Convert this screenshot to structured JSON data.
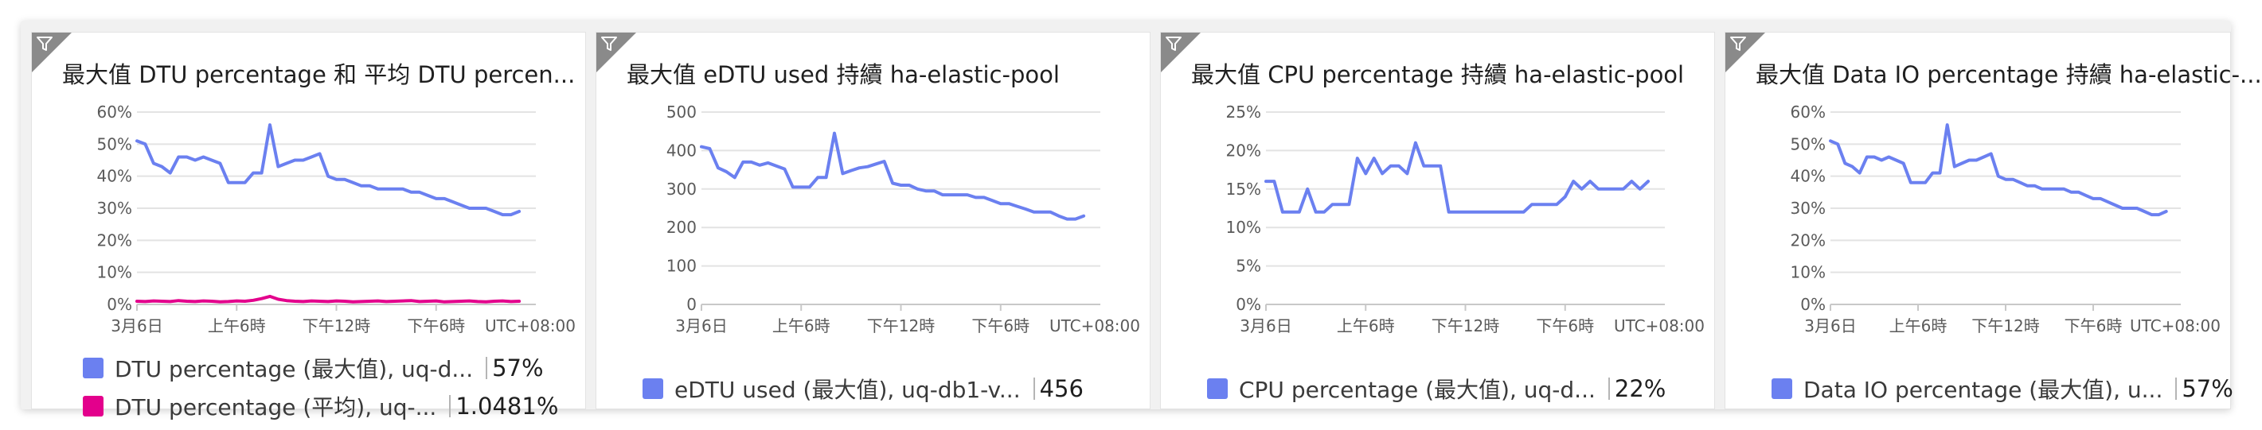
{
  "tiles": [
    {
      "title": "最大值 DTU percentage 和 平均 DTU percen...",
      "legend": [
        {
          "label": "DTU percentage (最大值), uq-d...",
          "value": "57%",
          "color": "#6b80f0"
        },
        {
          "label": "DTU percentage (平均), uq-...",
          "value": "1.0481%",
          "color": "#e3008c"
        }
      ]
    },
    {
      "title": "最大值 eDTU used 持續 ha-elastic-pool",
      "legend": [
        {
          "label": "eDTU used (最大值), uq-db1-v...",
          "value": "456",
          "color": "#6b80f0"
        }
      ]
    },
    {
      "title": "最大值 CPU percentage 持續 ha-elastic-pool",
      "legend": [
        {
          "label": "CPU percentage (最大值), uq-d...",
          "value": "22%",
          "color": "#6b80f0"
        }
      ]
    },
    {
      "title": "最大值 Data IO percentage 持續 ha-elastic-...",
      "legend": [
        {
          "label": "Data IO percentage (最大值), u...",
          "value": "57%",
          "color": "#6b80f0"
        }
      ]
    }
  ],
  "chart_data": [
    {
      "type": "line",
      "x_tick_labels": [
        "3月6日",
        "上午6時",
        "下午12時",
        "下午6時"
      ],
      "x_extra_label": "UTC+08:00",
      "x_range": [
        0,
        24
      ],
      "x_ticks_at": [
        0,
        6,
        12,
        18
      ],
      "y_tick_labels": [
        "60%",
        "50%",
        "40%",
        "30%",
        "20%",
        "10%",
        "0%"
      ],
      "ylim": [
        0,
        60
      ],
      "grid": true,
      "series": [
        {
          "name": "DTU percentage (最大值), uq-d...",
          "color": "#6b80f0",
          "x": [
            0,
            0.5,
            1,
            1.5,
            2,
            2.5,
            3,
            3.5,
            4,
            4.5,
            5,
            5.5,
            6,
            6.5,
            7,
            7.5,
            8,
            8.5,
            9,
            9.5,
            10,
            10.5,
            11,
            11.5,
            12,
            12.5,
            13,
            13.5,
            14,
            14.5,
            15,
            15.5,
            16,
            16.5,
            17,
            17.5,
            18,
            18.5,
            19,
            19.5,
            20,
            20.5,
            21,
            21.5,
            22,
            22.5,
            23
          ],
          "values": [
            51,
            50,
            44,
            43,
            41,
            46,
            46,
            45,
            46,
            45,
            44,
            38,
            38,
            38,
            41,
            41,
            56,
            43,
            44,
            45,
            45,
            46,
            47,
            40,
            39,
            39,
            38,
            37,
            37,
            36,
            36,
            36,
            36,
            35,
            35,
            34,
            33,
            33,
            32,
            31,
            30,
            30,
            30,
            29,
            28,
            28,
            29
          ]
        },
        {
          "name": "DTU percentage (平均), uq-...",
          "color": "#e3008c",
          "x": [
            0,
            0.5,
            1,
            1.5,
            2,
            2.5,
            3,
            3.5,
            4,
            4.5,
            5,
            5.5,
            6,
            6.5,
            7,
            7.5,
            8,
            8.5,
            9,
            9.5,
            10,
            10.5,
            11,
            11.5,
            12,
            12.5,
            13,
            13.5,
            14,
            14.5,
            15,
            15.5,
            16,
            16.5,
            17,
            17.5,
            18,
            18.5,
            19,
            19.5,
            20,
            20.5,
            21,
            21.5,
            22,
            22.5,
            23
          ],
          "values": [
            1.0,
            0.9,
            1.1,
            1.0,
            0.9,
            1.2,
            1.0,
            0.9,
            1.1,
            1.0,
            0.8,
            0.9,
            1.1,
            1.0,
            1.3,
            1.8,
            2.5,
            1.6,
            1.2,
            1.0,
            0.9,
            1.1,
            1.0,
            0.9,
            1.1,
            1.0,
            0.8,
            0.9,
            1.0,
            1.1,
            0.9,
            1.0,
            1.1,
            1.2,
            0.9,
            1.0,
            1.1,
            0.8,
            0.9,
            1.0,
            1.1,
            0.9,
            0.8,
            1.0,
            1.1,
            0.9,
            1.0
          ]
        }
      ]
    },
    {
      "type": "line",
      "x_tick_labels": [
        "3月6日",
        "上午6時",
        "下午12時",
        "下午6時"
      ],
      "x_extra_label": "UTC+08:00",
      "x_range": [
        0,
        24
      ],
      "x_ticks_at": [
        0,
        6,
        12,
        18
      ],
      "y_tick_labels": [
        "500",
        "400",
        "300",
        "200",
        "100",
        "0"
      ],
      "ylim": [
        0,
        500
      ],
      "grid": true,
      "series": [
        {
          "name": "eDTU used (最大值), uq-db1-v...",
          "color": "#6b80f0",
          "x": [
            0,
            0.5,
            1,
            1.5,
            2,
            2.5,
            3,
            3.5,
            4,
            4.5,
            5,
            5.5,
            6,
            6.5,
            7,
            7.5,
            8,
            8.5,
            9,
            9.5,
            10,
            10.5,
            11,
            11.5,
            12,
            12.5,
            13,
            13.5,
            14,
            14.5,
            15,
            15.5,
            16,
            16.5,
            17,
            17.5,
            18,
            18.5,
            19,
            19.5,
            20,
            20.5,
            21,
            21.5,
            22,
            22.5,
            23
          ],
          "values": [
            410,
            405,
            355,
            345,
            330,
            370,
            370,
            362,
            368,
            360,
            352,
            305,
            305,
            305,
            330,
            330,
            445,
            340,
            348,
            355,
            358,
            365,
            372,
            315,
            310,
            310,
            300,
            295,
            295,
            285,
            285,
            285,
            285,
            278,
            278,
            270,
            262,
            262,
            255,
            248,
            240,
            240,
            240,
            230,
            222,
            222,
            230
          ]
        }
      ]
    },
    {
      "type": "line",
      "x_tick_labels": [
        "3月6日",
        "上午6時",
        "下午12時",
        "下午6時"
      ],
      "x_extra_label": "UTC+08:00",
      "x_range": [
        0,
        24
      ],
      "x_ticks_at": [
        0,
        6,
        12,
        18
      ],
      "y_tick_labels": [
        "25%",
        "20%",
        "15%",
        "10%",
        "5%",
        "0%"
      ],
      "ylim": [
        0,
        25
      ],
      "grid": true,
      "series": [
        {
          "name": "CPU percentage (最大值), uq-d...",
          "color": "#6b80f0",
          "x": [
            0,
            0.5,
            1,
            1.5,
            2,
            2.5,
            3,
            3.5,
            4,
            4.5,
            5,
            5.5,
            6,
            6.5,
            7,
            7.5,
            8,
            8.5,
            9,
            9.5,
            10,
            10.5,
            11,
            11.5,
            12,
            12.5,
            13,
            13.5,
            14,
            14.5,
            15,
            15.5,
            16,
            16.5,
            17,
            17.5,
            18,
            18.5,
            19,
            19.5,
            20,
            20.5,
            21,
            21.5,
            22,
            22.5,
            23
          ],
          "values": [
            16,
            16,
            12,
            12,
            12,
            15,
            12,
            12,
            13,
            13,
            13,
            19,
            17,
            19,
            17,
            18,
            18,
            17,
            21,
            18,
            18,
            18,
            12,
            12,
            12,
            12,
            12,
            12,
            12,
            12,
            12,
            12,
            13,
            13,
            13,
            13,
            14,
            16,
            15,
            16,
            15,
            15,
            15,
            15,
            16,
            15,
            16
          ]
        }
      ]
    },
    {
      "type": "line",
      "x_tick_labels": [
        "3月6日",
        "上午6時",
        "下午12時",
        "下午6時"
      ],
      "x_extra_label": "UTC+08:00",
      "x_range": [
        0,
        24
      ],
      "x_ticks_at": [
        0,
        6,
        12,
        18
      ],
      "y_tick_labels": [
        "60%",
        "50%",
        "40%",
        "30%",
        "20%",
        "10%",
        "0%"
      ],
      "ylim": [
        0,
        60
      ],
      "grid": true,
      "series": [
        {
          "name": "Data IO percentage (最大值), u...",
          "color": "#6b80f0",
          "x": [
            0,
            0.5,
            1,
            1.5,
            2,
            2.5,
            3,
            3.5,
            4,
            4.5,
            5,
            5.5,
            6,
            6.5,
            7,
            7.5,
            8,
            8.5,
            9,
            9.5,
            10,
            10.5,
            11,
            11.5,
            12,
            12.5,
            13,
            13.5,
            14,
            14.5,
            15,
            15.5,
            16,
            16.5,
            17,
            17.5,
            18,
            18.5,
            19,
            19.5,
            20,
            20.5,
            21,
            21.5,
            22,
            22.5,
            23
          ],
          "values": [
            51,
            50,
            44,
            43,
            41,
            46,
            46,
            45,
            46,
            45,
            44,
            38,
            38,
            38,
            41,
            41,
            56,
            43,
            44,
            45,
            45,
            46,
            47,
            40,
            39,
            39,
            38,
            37,
            37,
            36,
            36,
            36,
            36,
            35,
            35,
            34,
            33,
            33,
            32,
            31,
            30,
            30,
            30,
            29,
            28,
            28,
            29
          ]
        }
      ]
    }
  ]
}
